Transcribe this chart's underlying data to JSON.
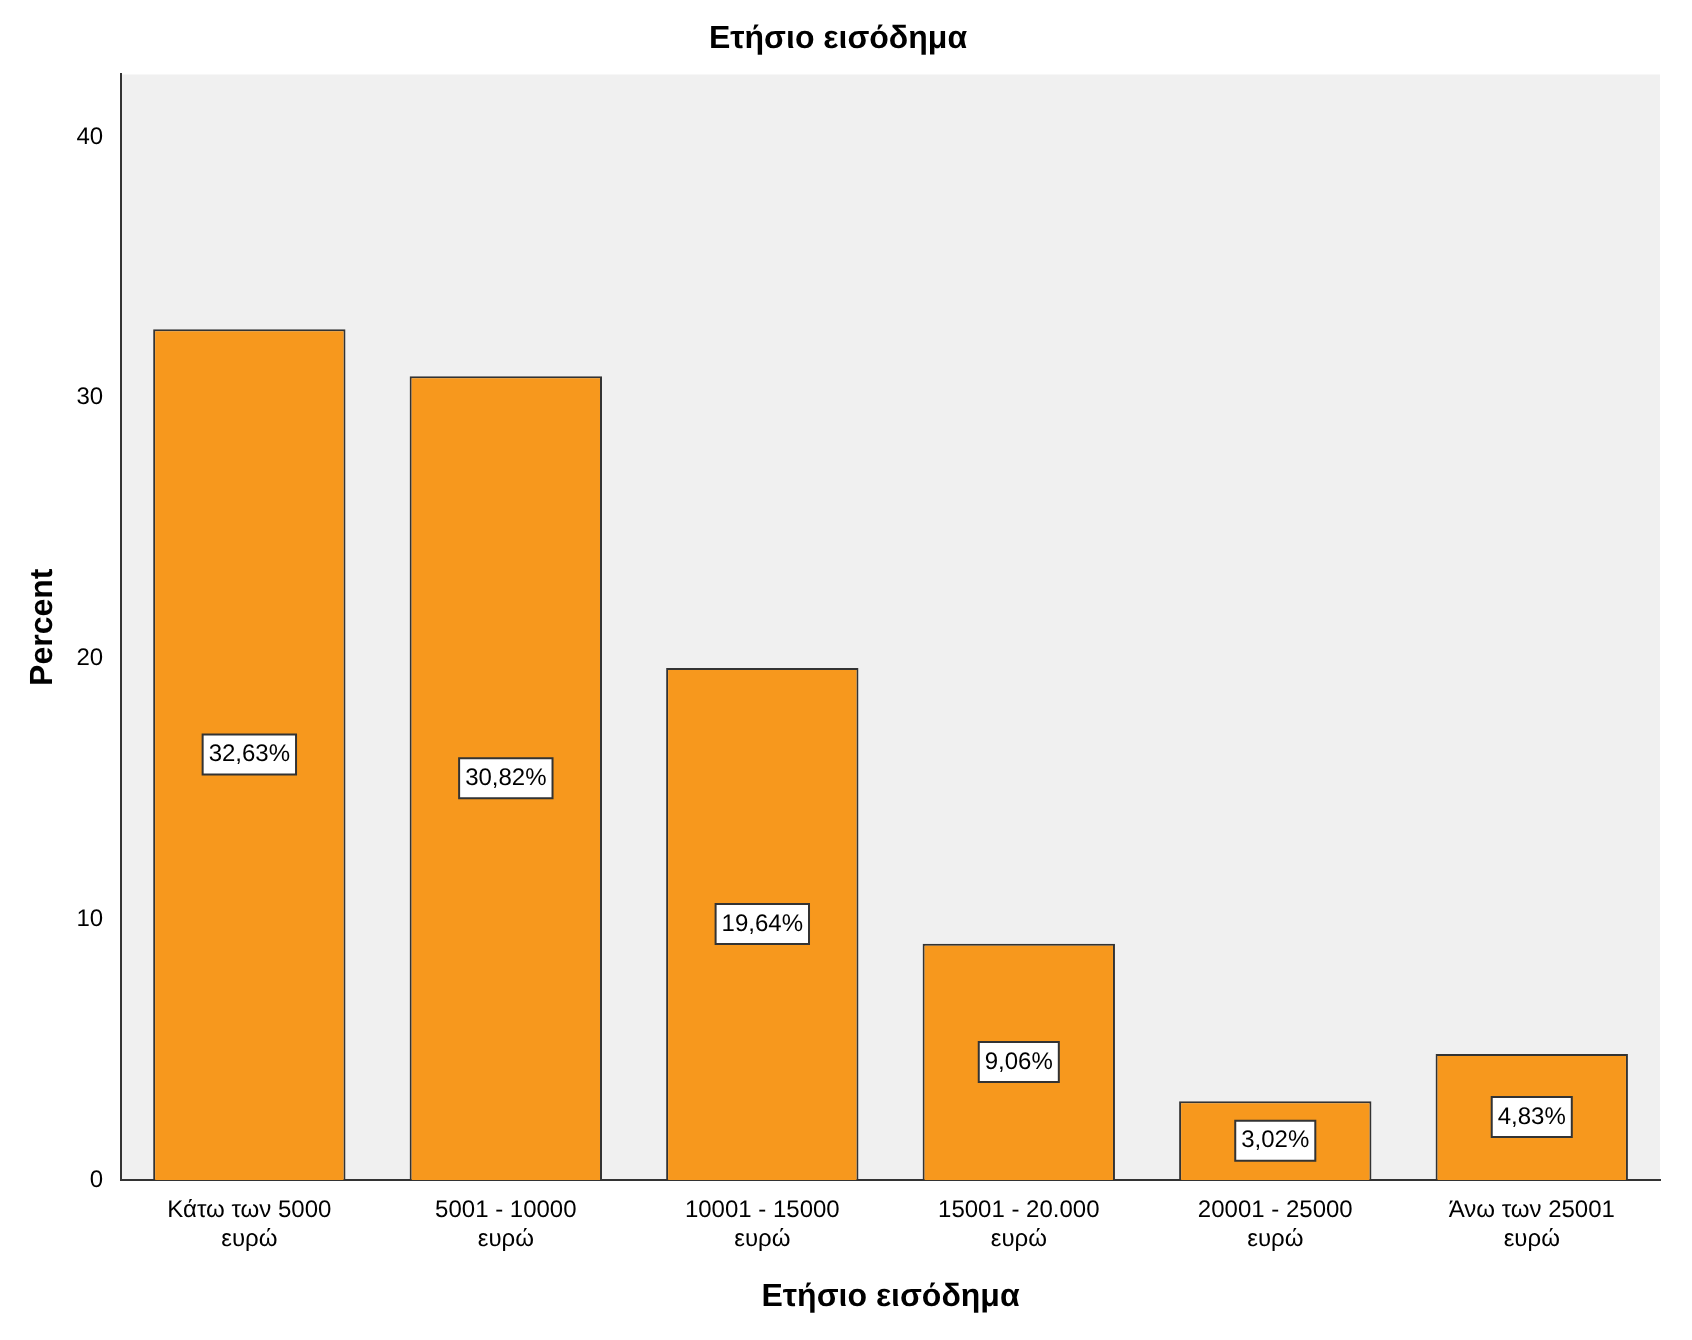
{
  "chart_data": {
    "type": "bar",
    "title": "Ετήσιο εισόδημα",
    "xlabel": "Ετήσιο εισόδημα",
    "ylabel": "Percent",
    "categories": [
      "Κάτω των 5000 ευρώ",
      "5001 - 10000 ευρώ",
      "10001 - 15000 ευρώ",
      "15001 - 20.000 ευρώ",
      "20001 - 25000 ευρώ",
      "Άνω των 25001 ευρώ"
    ],
    "values": [
      32.63,
      30.82,
      19.64,
      9.06,
      3.02,
      4.83
    ],
    "value_labels": [
      "32,63%",
      "30,82%",
      "19,64%",
      "9,06%",
      "3,02%",
      "4,83%"
    ],
    "color": "#f7981d",
    "ylim": [
      0,
      42.4
    ],
    "yticks": [
      0,
      10,
      20,
      30,
      40
    ],
    "grid": false,
    "legend": false
  }
}
